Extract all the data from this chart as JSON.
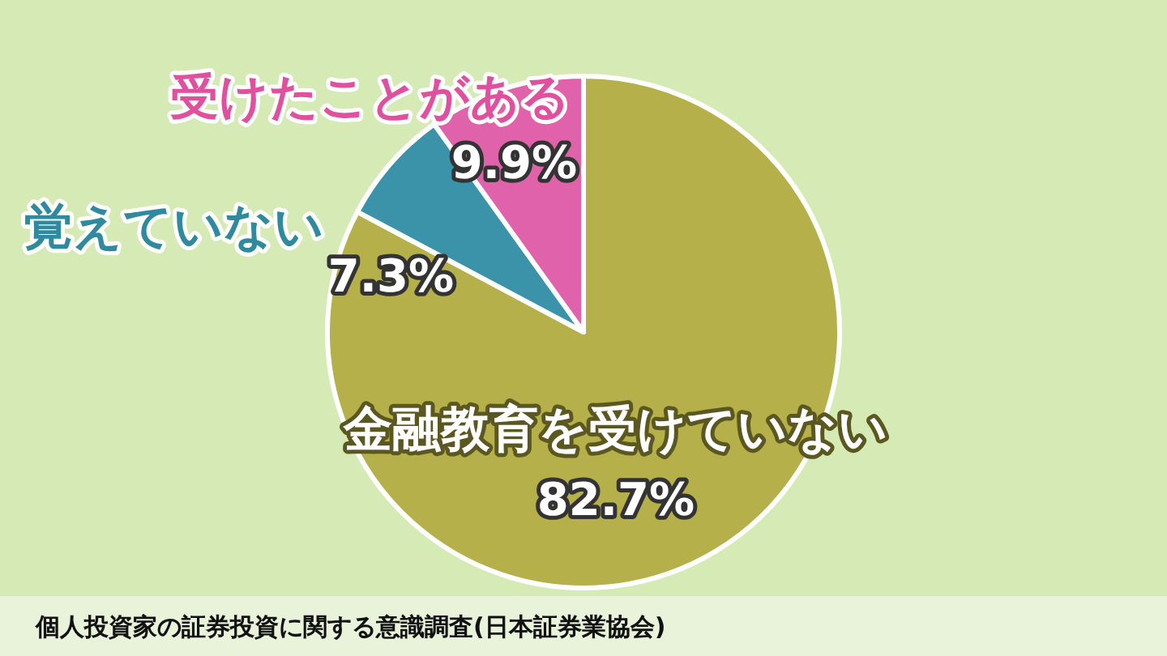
{
  "chart_data": {
    "type": "pie",
    "categories": [
      "金融教育を受けていない",
      "覚えていない",
      "受けたことがある"
    ],
    "values": [
      82.7,
      7.3,
      9.9
    ],
    "colors": [
      "#b5b04a",
      "#3a93a8",
      "#e062aa"
    ],
    "value_labels": [
      "82.7%",
      "7.3%",
      "9.9%"
    ],
    "annotations": [
      "個人投資家の証券投資に関する意識調査(日本証券業協会)"
    ]
  }
}
